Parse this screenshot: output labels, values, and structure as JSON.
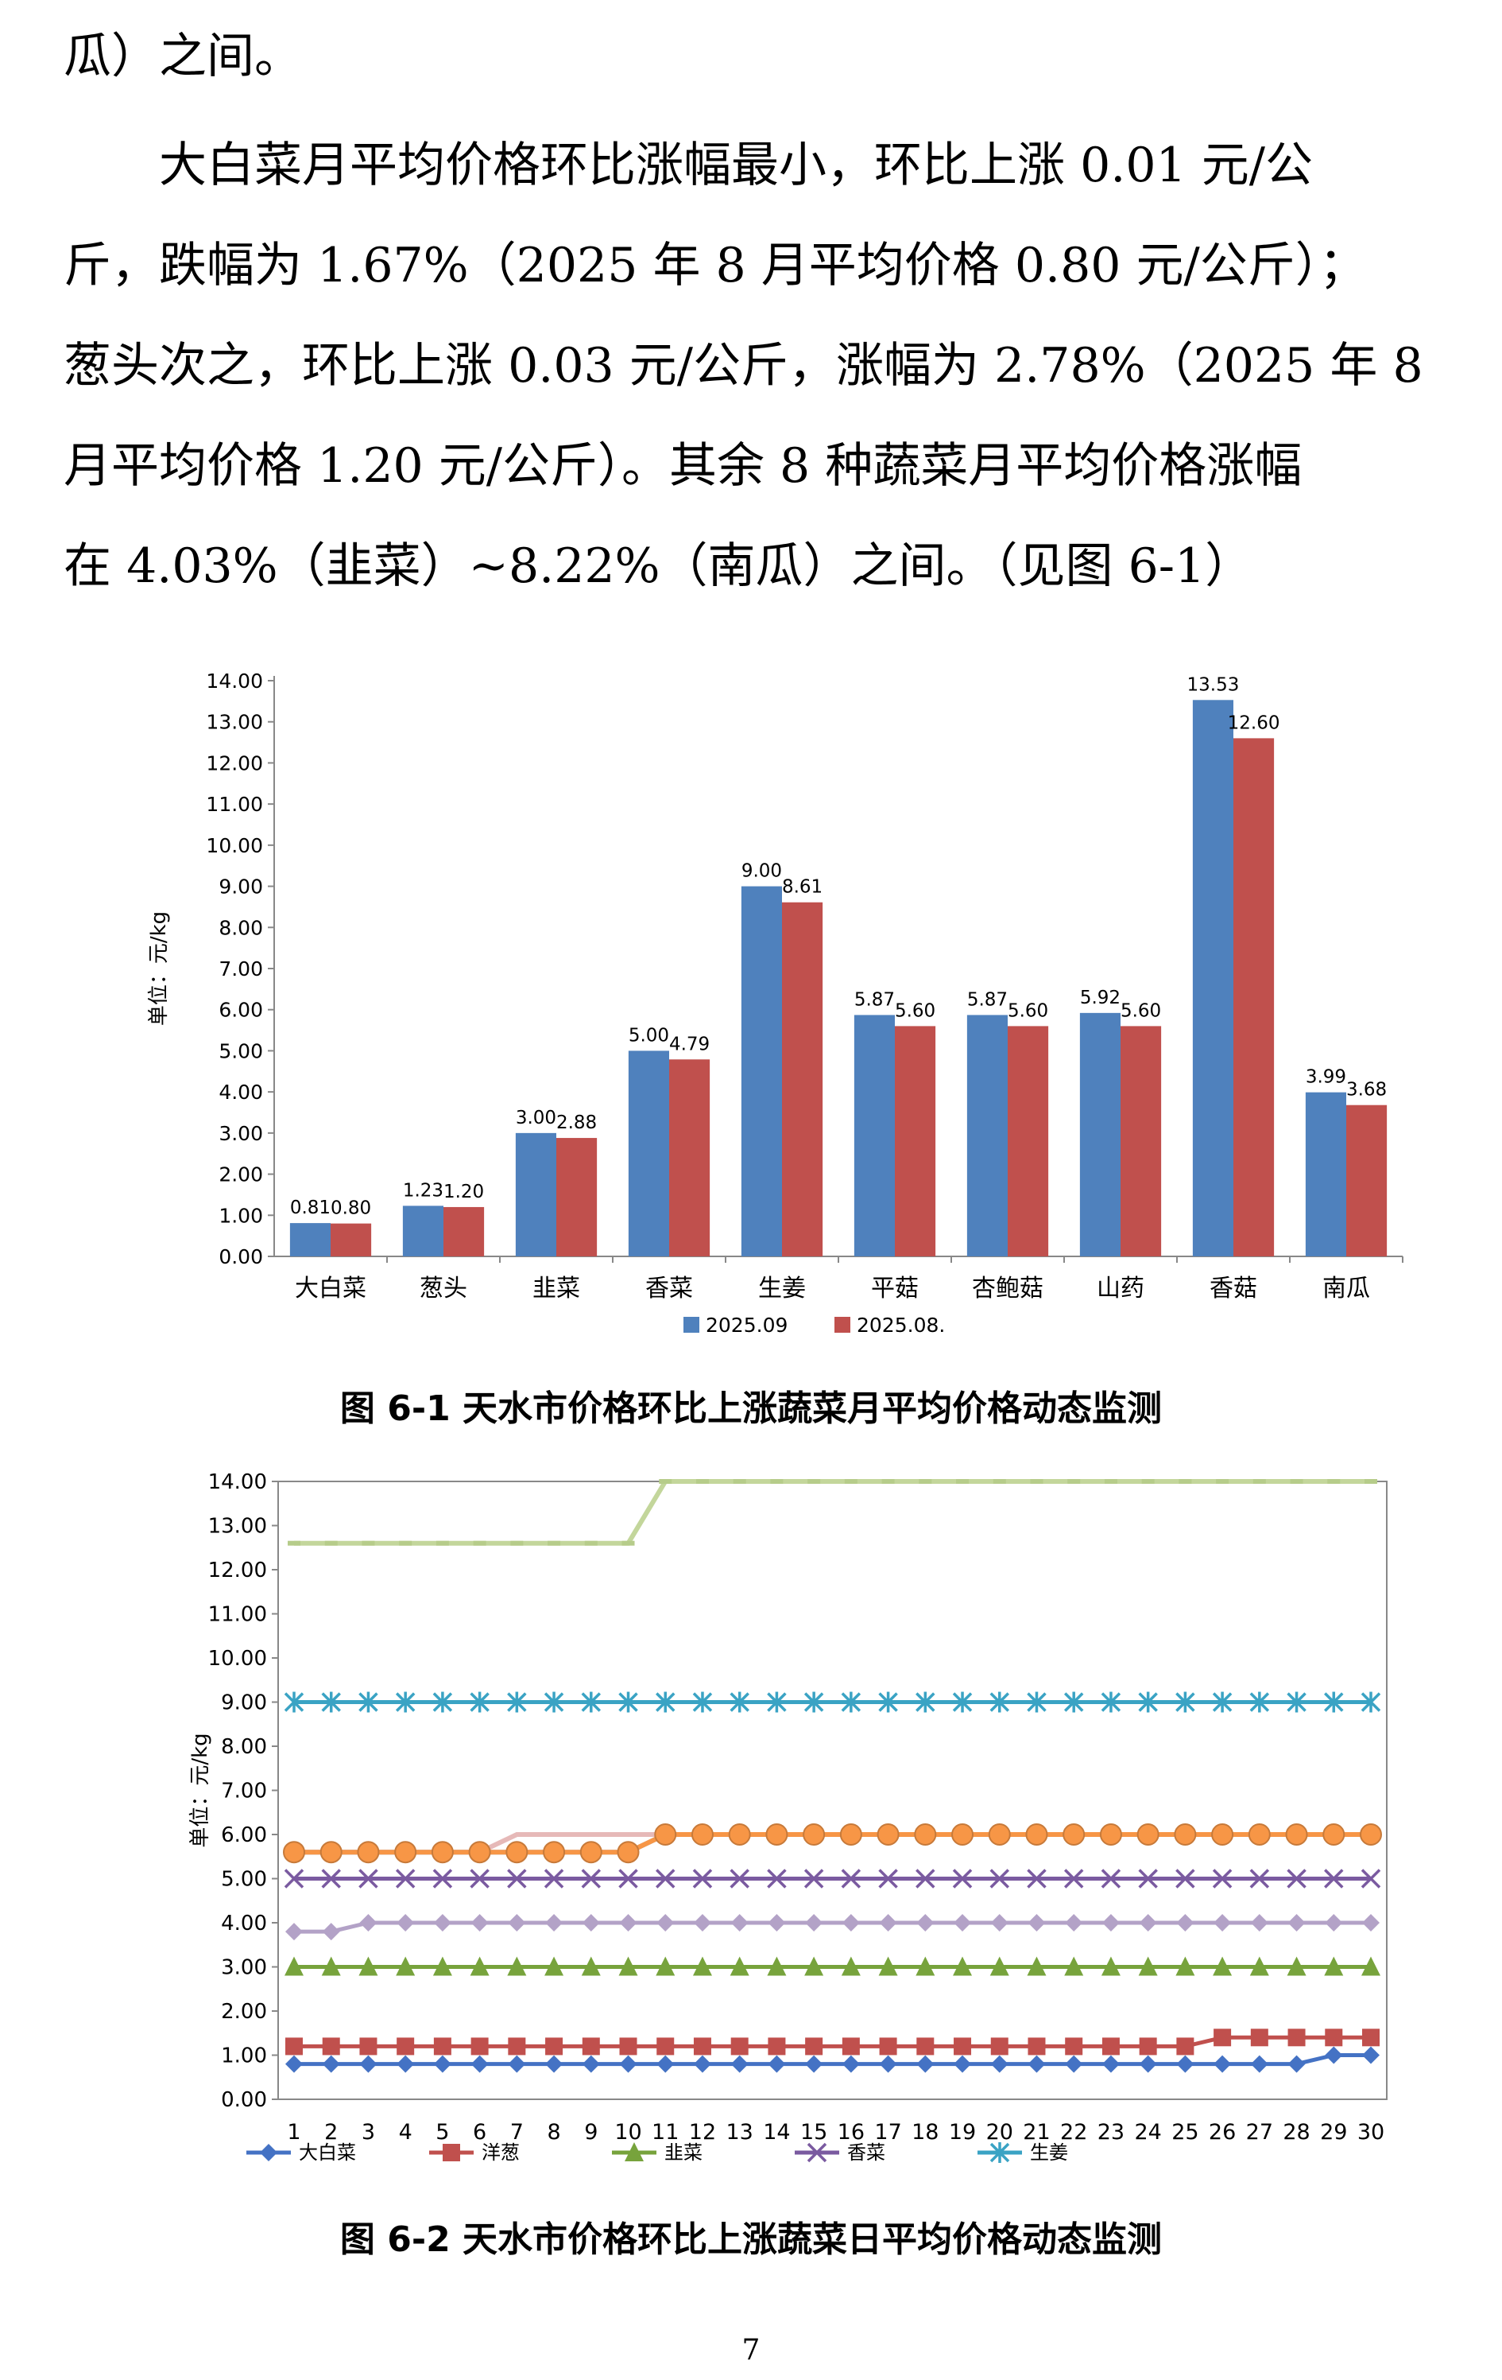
{
  "text": {
    "line0": "瓜）之间。",
    "p1": [
      "大白菜月平均价格环比涨幅最小，环比上涨 0.01 元/公",
      "斤，跌幅为 1.67%（2025 年 8 月平均价格 0.80 元/公斤）；",
      "葱头次之，环比上涨 0.03 元/公斤，涨幅为 2.78%（2025 年 8",
      "月平均价格 1.20 元/公斤）。其余 8 种蔬菜月平均价格涨幅",
      "在 4.03%（韭菜）~8.22%（南瓜）之间。（见图 6-1）"
    ]
  },
  "figure1": {
    "caption": "图 6-1   天水市价格环比上涨蔬菜月平均价格动态监测",
    "ylabel": "单位：元/kg",
    "series_colors": [
      "#4f81bd",
      "#c0504d"
    ]
  },
  "figure2": {
    "caption": "图 6-2   天水市价格环比上涨蔬菜日平均价格动态监测",
    "ylabel": "单位：元/kg"
  },
  "page_number": "7",
  "chart_data": [
    {
      "type": "bar",
      "title": "",
      "xlabel": "",
      "ylabel": "单位：元/kg",
      "ylim": [
        0,
        14
      ],
      "yticks": [
        "0.00",
        "1.00",
        "2.00",
        "3.00",
        "4.00",
        "5.00",
        "6.00",
        "7.00",
        "8.00",
        "9.00",
        "10.00",
        "11.00",
        "12.00",
        "13.00",
        "14.00"
      ],
      "categories": [
        "大白菜",
        "葱头",
        "韭菜",
        "香菜",
        "生姜",
        "平菇",
        "杏鲍菇",
        "山药",
        "香菇",
        "南瓜"
      ],
      "series": [
        {
          "name": "2025.09",
          "values": [
            0.81,
            1.23,
            3.0,
            5.0,
            9.0,
            5.87,
            5.87,
            5.92,
            13.53,
            3.99
          ],
          "labels": [
            "0.81",
            "1.23",
            "3.00",
            "5.00",
            "9.00",
            "5.87",
            "5.87",
            "5.92",
            "13.53",
            "3.99"
          ]
        },
        {
          "name": "2025.08.",
          "values": [
            0.8,
            1.2,
            2.88,
            4.79,
            8.61,
            5.6,
            5.6,
            5.6,
            12.6,
            3.68
          ],
          "labels": [
            "0.80",
            "1.20",
            "2.88",
            "4.79",
            "8.61",
            "5.60",
            "5.60",
            "5.60",
            "12.60",
            "3.68"
          ]
        }
      ],
      "legend": "bottom"
    },
    {
      "type": "line",
      "title": "",
      "ylabel": "单位：元/kg",
      "ylim": [
        0,
        14
      ],
      "yticks": [
        "0.00",
        "1.00",
        "2.00",
        "3.00",
        "4.00",
        "5.00",
        "6.00",
        "7.00",
        "8.00",
        "9.00",
        "10.00",
        "11.00",
        "12.00",
        "13.00",
        "14.00"
      ],
      "x": [
        1,
        2,
        3,
        4,
        5,
        6,
        7,
        8,
        9,
        10,
        11,
        12,
        13,
        14,
        15,
        16,
        17,
        18,
        19,
        20,
        21,
        22,
        23,
        24,
        25,
        26,
        27,
        28,
        29,
        30
      ],
      "xticks": [
        "1",
        "2",
        "3",
        "4",
        "5",
        "6",
        "7",
        "8",
        "9",
        "10",
        "11",
        "12",
        "13",
        "14",
        "15",
        "16",
        "17",
        "18",
        "19",
        "20",
        "21",
        "22",
        "23",
        "24",
        "25",
        "26",
        "27",
        "28",
        "29",
        "30"
      ],
      "series": [
        {
          "name": "大白菜",
          "color": "#4472c4",
          "marker": "diamond",
          "values": [
            0.8,
            0.8,
            0.8,
            0.8,
            0.8,
            0.8,
            0.8,
            0.8,
            0.8,
            0.8,
            0.8,
            0.8,
            0.8,
            0.8,
            0.8,
            0.8,
            0.8,
            0.8,
            0.8,
            0.8,
            0.8,
            0.8,
            0.8,
            0.8,
            0.8,
            0.8,
            0.8,
            0.8,
            1.0,
            1.0
          ]
        },
        {
          "name": "洋葱",
          "color": "#c0504d",
          "marker": "square",
          "values": [
            1.2,
            1.2,
            1.2,
            1.2,
            1.2,
            1.2,
            1.2,
            1.2,
            1.2,
            1.2,
            1.2,
            1.2,
            1.2,
            1.2,
            1.2,
            1.2,
            1.2,
            1.2,
            1.2,
            1.2,
            1.2,
            1.2,
            1.2,
            1.2,
            1.2,
            1.4,
            1.4,
            1.4,
            1.4,
            1.4
          ]
        },
        {
          "name": "韭菜",
          "color": "#77a33c",
          "marker": "triangle",
          "values": [
            3,
            3,
            3,
            3,
            3,
            3,
            3,
            3,
            3,
            3,
            3,
            3,
            3,
            3,
            3,
            3,
            3,
            3,
            3,
            3,
            3,
            3,
            3,
            3,
            3,
            3,
            3,
            3,
            3,
            3
          ]
        },
        {
          "name": "香菜",
          "color": "#7a5aa0",
          "marker": "x",
          "values": [
            5,
            5,
            5,
            5,
            5,
            5,
            5,
            5,
            5,
            5,
            5,
            5,
            5,
            5,
            5,
            5,
            5,
            5,
            5,
            5,
            5,
            5,
            5,
            5,
            5,
            5,
            5,
            5,
            5,
            5
          ]
        },
        {
          "name": "生姜",
          "color": "#3aa3c4",
          "marker": "star",
          "values": [
            9,
            9,
            9,
            9,
            9,
            9,
            9,
            9,
            9,
            9,
            9,
            9,
            9,
            9,
            9,
            9,
            9,
            9,
            9,
            9,
            9,
            9,
            9,
            9,
            9,
            9,
            9,
            9,
            9,
            9
          ]
        },
        {
          "name": "",
          "color": "#b3a2c7",
          "marker": "diamond",
          "values": [
            3.8,
            3.8,
            4,
            4,
            4,
            4,
            4,
            4,
            4,
            4,
            4,
            4,
            4,
            4,
            4,
            4,
            4,
            4,
            4,
            4,
            4,
            4,
            4,
            4,
            4,
            4,
            4,
            4,
            4,
            4
          ]
        },
        {
          "name": "",
          "color": "#e6b9b8",
          "marker": "none",
          "values": [
            5.6,
            5.6,
            5.6,
            5.6,
            5.6,
            5.6,
            6,
            6,
            6,
            6,
            6,
            6,
            6,
            6,
            6,
            6,
            6,
            6,
            6,
            6,
            6,
            6,
            6,
            6,
            6,
            6,
            6,
            6,
            6,
            6
          ]
        },
        {
          "name": "",
          "color": "#95b3d7",
          "marker": "none",
          "values": [
            5.6,
            5.6,
            5.6,
            5.6,
            5.6,
            5.6,
            5.6,
            5.6,
            5.6,
            5.6,
            6,
            6,
            6,
            6,
            6,
            6,
            6,
            6,
            6,
            6,
            6,
            6,
            6,
            6,
            6,
            6,
            6,
            6,
            6,
            6
          ]
        },
        {
          "name": "",
          "color": "#f79646",
          "marker": "circle",
          "values": [
            5.6,
            5.6,
            5.6,
            5.6,
            5.6,
            5.6,
            5.6,
            5.6,
            5.6,
            5.6,
            6,
            6,
            6,
            6,
            6,
            6,
            6,
            6,
            6,
            6,
            6,
            6,
            6,
            6,
            6,
            6,
            6,
            6,
            6,
            6
          ]
        },
        {
          "name": "",
          "color": "#c3d69b",
          "marker": "dash",
          "values": [
            12.6,
            12.6,
            12.6,
            12.6,
            12.6,
            12.6,
            12.6,
            12.6,
            12.6,
            12.6,
            14,
            14,
            14,
            14,
            14,
            14,
            14,
            14,
            14,
            14,
            14,
            14,
            14,
            14,
            14,
            14,
            14,
            14,
            14,
            14
          ]
        }
      ],
      "legend": "bottom"
    }
  ]
}
